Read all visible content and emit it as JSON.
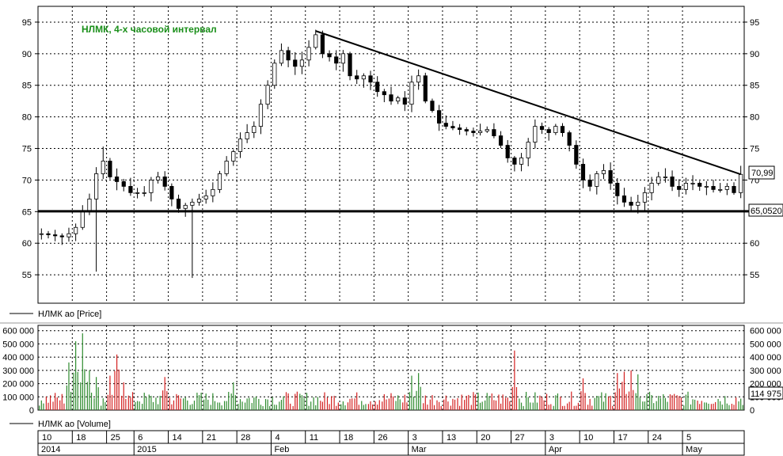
{
  "chart_data": [
    {
      "type": "candlestick",
      "annotation": "НЛМК, 4-х часовой интервал",
      "legend": "НЛМК ао [Price]",
      "ylim": [
        50.5,
        97.5
      ],
      "yticks": [
        55,
        60,
        65,
        70,
        75,
        80,
        85,
        90,
        95
      ],
      "grid": true,
      "last_price_label": "70,99",
      "support_level": 65.052,
      "support_label": "65,0520",
      "trendline": {
        "from": {
          "bar": 40,
          "value": 93.6
        },
        "to": {
          "bar": 102,
          "value": 70.9
        }
      },
      "close_path": [
        [
          0,
          61.5
        ],
        [
          3,
          61
        ],
        [
          4,
          61.5
        ],
        [
          5,
          62.5
        ],
        [
          6,
          65
        ],
        [
          7,
          67
        ],
        [
          8,
          71
        ],
        [
          9,
          73
        ],
        [
          10,
          70.5
        ],
        [
          12,
          69
        ],
        [
          13,
          68
        ],
        [
          15,
          68
        ],
        [
          16,
          70
        ],
        [
          17,
          70.5
        ],
        [
          18,
          69
        ],
        [
          19,
          67
        ],
        [
          20,
          65.5
        ],
        [
          22,
          66.5
        ],
        [
          23,
          67
        ],
        [
          24,
          67.5
        ],
        [
          25,
          68.5
        ],
        [
          26,
          71
        ],
        [
          27,
          73
        ],
        [
          28,
          74.5
        ],
        [
          29,
          76.5
        ],
        [
          30,
          77.5
        ],
        [
          31,
          78.5
        ],
        [
          32,
          82
        ],
        [
          33,
          85
        ],
        [
          34,
          88.5
        ],
        [
          35,
          90.5
        ],
        [
          36,
          89
        ],
        [
          37,
          88
        ],
        [
          38,
          89
        ],
        [
          39,
          91
        ],
        [
          40,
          93
        ],
        [
          41,
          90
        ],
        [
          42,
          89.5
        ],
        [
          43,
          88.5
        ],
        [
          44,
          90
        ],
        [
          45,
          86.5
        ],
        [
          46,
          86
        ],
        [
          47,
          86.5
        ],
        [
          48,
          85.5
        ],
        [
          49,
          84
        ],
        [
          50,
          83.5
        ],
        [
          51,
          82.5
        ],
        [
          52,
          83
        ],
        [
          53,
          82
        ],
        [
          54,
          85.5
        ],
        [
          55,
          86.5
        ],
        [
          56,
          82.5
        ],
        [
          57,
          81
        ],
        [
          58,
          79
        ],
        [
          59,
          78.5
        ],
        [
          61,
          78
        ],
        [
          63,
          77.5
        ],
        [
          65,
          78
        ],
        [
          66,
          77
        ],
        [
          67,
          75.5
        ],
        [
          68,
          73.5
        ],
        [
          69,
          72.5
        ],
        [
          70,
          73.5
        ],
        [
          71,
          76
        ],
        [
          72,
          78.5
        ],
        [
          73,
          78
        ],
        [
          74,
          77.5
        ],
        [
          75,
          78.5
        ],
        [
          76,
          77.5
        ],
        [
          77,
          75.5
        ],
        [
          78,
          72.5
        ],
        [
          79,
          70
        ],
        [
          80,
          69
        ],
        [
          81,
          71
        ],
        [
          82,
          71.5
        ],
        [
          83,
          69.5
        ],
        [
          84,
          67.5
        ],
        [
          85,
          66.5
        ],
        [
          86,
          66
        ],
        [
          87,
          66.5
        ],
        [
          88,
          68
        ],
        [
          89,
          69.5
        ],
        [
          90,
          70.5
        ],
        [
          91,
          70.5
        ],
        [
          92,
          69
        ],
        [
          93,
          68.5
        ],
        [
          94,
          69.5
        ],
        [
          95,
          69.5
        ],
        [
          96,
          69
        ],
        [
          97,
          69
        ],
        [
          98,
          68.5
        ],
        [
          99,
          68.5
        ],
        [
          100,
          69
        ],
        [
          101,
          68
        ],
        [
          102,
          70.9
        ]
      ],
      "spikes": [
        {
          "bar": 8,
          "low": 55.5
        },
        {
          "bar": 9,
          "high": 75.3
        },
        {
          "bar": 22,
          "low": 54.5
        },
        {
          "bar": 40,
          "high": 93.8
        },
        {
          "bar": 55,
          "high": 87.5
        }
      ]
    },
    {
      "type": "bar",
      "legend": "НЛМК ао [Volume]",
      "ylim": [
        0,
        640000
      ],
      "ytick_values": [
        0,
        100000,
        200000,
        300000,
        400000,
        500000,
        600000
      ],
      "ytick_labels": [
        "0",
        "100 000",
        "200 000",
        "300 000",
        "400 000",
        "500 000",
        "600 000"
      ],
      "last_value_label": "114 975",
      "up_color": "#2e8b2e",
      "down_color": "#d42020",
      "peaks": [
        {
          "bar": 4,
          "value": 360000
        },
        {
          "bar": 5,
          "value": 520000
        },
        {
          "bar": 6,
          "value": 580000
        },
        {
          "bar": 7,
          "value": 300000
        },
        {
          "bar": 8,
          "value": 250000
        },
        {
          "bar": 10,
          "value": 260000
        },
        {
          "bar": 11,
          "value": 420000
        },
        {
          "bar": 12,
          "value": 210000
        },
        {
          "bar": 18,
          "value": 250000
        },
        {
          "bar": 28,
          "value": 210000
        },
        {
          "bar": 54,
          "value": 260000
        },
        {
          "bar": 55,
          "value": 280000
        },
        {
          "bar": 69,
          "value": 450000
        },
        {
          "bar": 79,
          "value": 240000
        },
        {
          "bar": 84,
          "value": 280000
        },
        {
          "bar": 85,
          "value": 290000
        },
        {
          "bar": 86,
          "value": 300000
        },
        {
          "bar": 87,
          "value": 270000
        }
      ]
    }
  ],
  "x_axis": {
    "day_ticks": [
      {
        "bar": 0,
        "label": "10"
      },
      {
        "bar": 5,
        "label": "18"
      },
      {
        "bar": 10,
        "label": "25"
      },
      {
        "bar": 14,
        "label": "6"
      },
      {
        "bar": 19,
        "label": "14"
      },
      {
        "bar": 24,
        "label": "21"
      },
      {
        "bar": 29,
        "label": "28"
      },
      {
        "bar": 34,
        "label": "4"
      },
      {
        "bar": 39,
        "label": "11"
      },
      {
        "bar": 44,
        "label": "18"
      },
      {
        "bar": 49,
        "label": "26"
      },
      {
        "bar": 54,
        "label": "3"
      },
      {
        "bar": 59,
        "label": "13"
      },
      {
        "bar": 64,
        "label": "20"
      },
      {
        "bar": 69,
        "label": "27"
      },
      {
        "bar": 74,
        "label": "3"
      },
      {
        "bar": 79,
        "label": "10"
      },
      {
        "bar": 84,
        "label": "17"
      },
      {
        "bar": 89,
        "label": "24"
      },
      {
        "bar": 94,
        "label": "5"
      }
    ],
    "period_ticks": [
      {
        "bar": 0,
        "label": "2014"
      },
      {
        "bar": 14,
        "label": "2015"
      },
      {
        "bar": 34,
        "label": "Feb"
      },
      {
        "bar": 54,
        "label": "Mar"
      },
      {
        "bar": 74,
        "label": "Apr"
      },
      {
        "bar": 94,
        "label": "May"
      }
    ]
  },
  "colors": {
    "annotation": "#1a8f1a",
    "grid": "#000000",
    "line": "#000000"
  }
}
